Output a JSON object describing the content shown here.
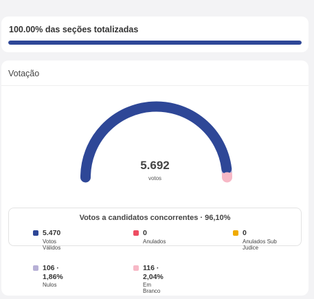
{
  "progress": {
    "title": "100.00% das seções totalizadas",
    "percent": 100,
    "color": "#2e4797"
  },
  "votacao": {
    "title": "Votação",
    "total_value": "5.692",
    "total_label": "votos",
    "gauge": {
      "segments": [
        {
          "name": "Votos Válidos",
          "fraction": 0.961,
          "color": "#2e4797"
        },
        {
          "name": "Nulos",
          "fraction": 0.0186,
          "color": "#b7b0d6"
        },
        {
          "name": "Em Branco",
          "fraction": 0.0204,
          "color": "#f7b8c6"
        }
      ]
    },
    "legend": {
      "title": "Votos a candidatos concorrentes · 96,10%",
      "items": [
        {
          "value": "5.470",
          "label": "Votos Válidos",
          "color": "#2e4797"
        },
        {
          "value": "0",
          "label": "Anulados",
          "color": "#ee4d62"
        },
        {
          "value": "0",
          "label": "Anulados Sub Judice",
          "color": "#f0ab00"
        },
        {
          "value": "106 · 1,86%",
          "label": "Nulos",
          "color": "#b7b0d6"
        },
        {
          "value": "116 · 2,04%",
          "label": "Em Branco",
          "color": "#f7b8c6"
        }
      ]
    }
  }
}
